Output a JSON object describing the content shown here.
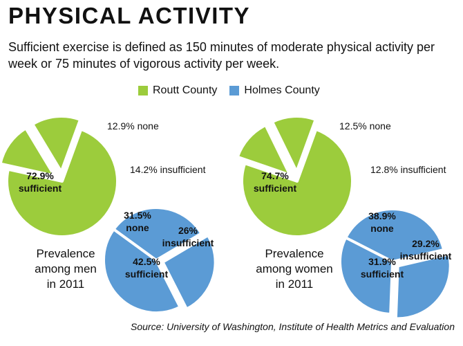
{
  "title": "PHYSICAL ACTIVITY",
  "subtitle": "Sufficient exercise is defined as 150 minutes of moderate physical activity per week or 75 minutes of vigorous activity per week.",
  "legend": [
    {
      "name": "Routt County",
      "color": "#9ccc3c"
    },
    {
      "name": "Holmes County",
      "color": "#5b9bd5"
    }
  ],
  "source": "Source: University of Washington, Institute of Health Metrics and Evaluation",
  "panels": [
    {
      "label_lines": [
        "Prevalence",
        "among men",
        "in 2011"
      ]
    },
    {
      "label_lines": [
        "Prevalence",
        "among women",
        "in 2011"
      ]
    }
  ],
  "chart_data": [
    {
      "type": "pie",
      "panel": "Prevalence among men in 2011",
      "series": "Routt County",
      "color": "#9ccc3c",
      "slices": [
        {
          "label": "sufficient",
          "value": 72.9,
          "text": [
            "72.9%",
            "sufficient"
          ]
        },
        {
          "label": "none",
          "value": 12.9,
          "text": [
            "12.9% none"
          ]
        },
        {
          "label": "insufficient",
          "value": 14.2,
          "text": [
            "14.2% insufficient"
          ]
        }
      ]
    },
    {
      "type": "pie",
      "panel": "Prevalence among men in 2011",
      "series": "Holmes County",
      "color": "#5b9bd5",
      "slices": [
        {
          "label": "none",
          "value": 31.5,
          "text": [
            "31.5%",
            "none"
          ]
        },
        {
          "label": "insufficient",
          "value": 26,
          "text": [
            "26%",
            "insufficient"
          ]
        },
        {
          "label": "sufficient",
          "value": 42.5,
          "text": [
            "42.5%",
            "sufficient"
          ]
        }
      ]
    },
    {
      "type": "pie",
      "panel": "Prevalence among women in 2011",
      "series": "Routt County",
      "color": "#9ccc3c",
      "slices": [
        {
          "label": "sufficient",
          "value": 74.7,
          "text": [
            "74.7%",
            "sufficient"
          ]
        },
        {
          "label": "none",
          "value": 12.5,
          "text": [
            "12.5% none"
          ]
        },
        {
          "label": "insufficient",
          "value": 12.8,
          "text": [
            "12.8% insufficient"
          ]
        }
      ]
    },
    {
      "type": "pie",
      "panel": "Prevalence among women in 2011",
      "series": "Holmes County",
      "color": "#5b9bd5",
      "slices": [
        {
          "label": "none",
          "value": 38.9,
          "text": [
            "38.9%",
            "none"
          ]
        },
        {
          "label": "insufficient",
          "value": 29.2,
          "text": [
            "29.2%",
            "insufficient"
          ]
        },
        {
          "label": "sufficient",
          "value": 31.9,
          "text": [
            "31.9%",
            "sufficient"
          ]
        }
      ]
    }
  ]
}
